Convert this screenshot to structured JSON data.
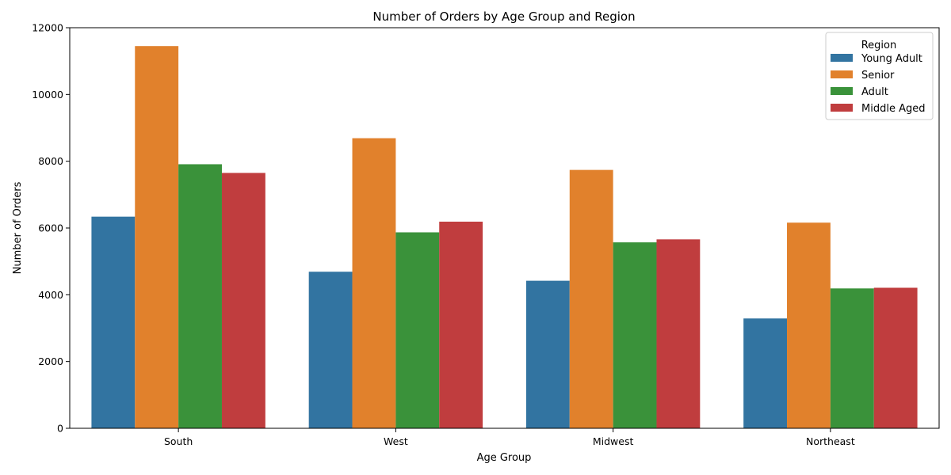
{
  "chart_data": {
    "type": "bar",
    "title": "Number of Orders by Age Group and Region",
    "xlabel": "Age Group",
    "ylabel": "Number of Orders",
    "categories": [
      "South",
      "West",
      "Midwest",
      "Northeast"
    ],
    "ylim": [
      0,
      12000
    ],
    "yticks": [
      0,
      2000,
      4000,
      6000,
      8000,
      10000,
      12000
    ],
    "grid": false,
    "legend": {
      "title": "Region",
      "placement": "top-right"
    },
    "series": [
      {
        "name": "Young Adult",
        "color": "#3274a1",
        "values": [
          6340,
          4690,
          4420,
          3290
        ]
      },
      {
        "name": "Senior",
        "color": "#e1812c",
        "values": [
          11450,
          8690,
          7740,
          6160
        ]
      },
      {
        "name": "Adult",
        "color": "#3a923a",
        "values": [
          7910,
          5870,
          5570,
          4190
        ]
      },
      {
        "name": "Middle Aged",
        "color": "#c03d3e",
        "values": [
          7650,
          6190,
          5660,
          4210
        ]
      }
    ]
  }
}
